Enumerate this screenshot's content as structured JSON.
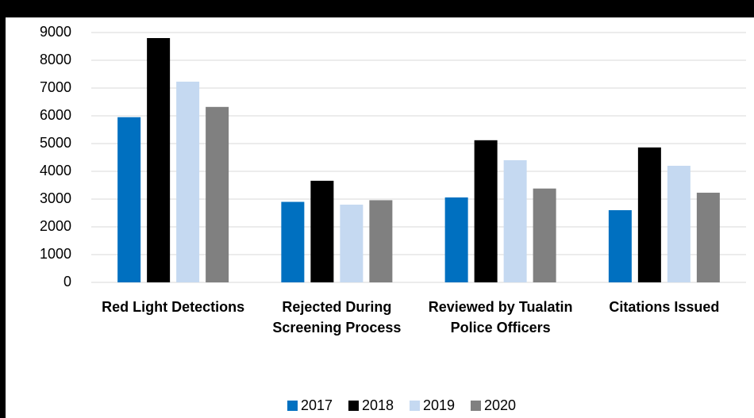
{
  "chart_data": {
    "type": "bar",
    "categories": [
      "Red Light Detections",
      "Rejected During Screening Process",
      "Reviewed by Tualatin Police Officers",
      "Citations Issued"
    ],
    "series": [
      {
        "name": "2017",
        "color": "#0070c0",
        "values": [
          5950,
          2900,
          3060,
          2600
        ]
      },
      {
        "name": "2018",
        "color": "#000000",
        "values": [
          8800,
          3660,
          5120,
          4860
        ]
      },
      {
        "name": "2019",
        "color": "#c5d9f1",
        "values": [
          7230,
          2800,
          4400,
          4200
        ]
      },
      {
        "name": "2020",
        "color": "#808080",
        "values": [
          6320,
          2960,
          3380,
          3230
        ]
      }
    ],
    "ylim": [
      0,
      9000
    ],
    "yticks": [
      0,
      1000,
      2000,
      3000,
      4000,
      5000,
      6000,
      7000,
      8000,
      9000
    ],
    "grid": true,
    "legend": "bottom"
  }
}
